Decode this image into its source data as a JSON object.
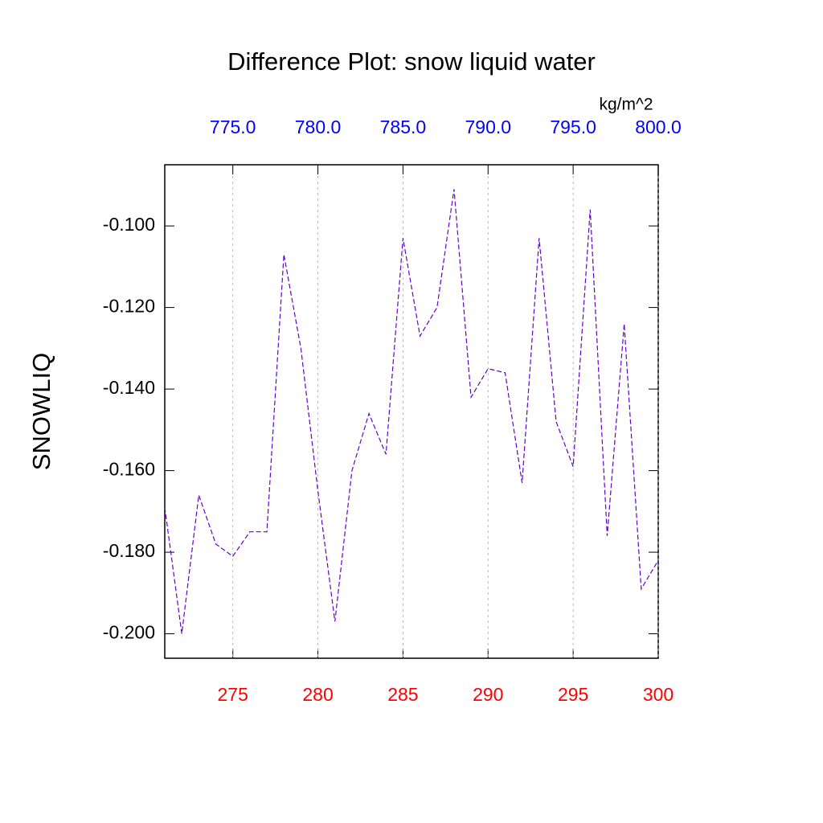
{
  "chart_data": {
    "type": "line",
    "title": "Difference Plot: snow liquid water",
    "y_label": "SNOWLIQ",
    "x2_label": "kg/m^2",
    "x": [
      271,
      272,
      273,
      274,
      275,
      276,
      277,
      278,
      279,
      280,
      281,
      282,
      283,
      284,
      285,
      286,
      287,
      288,
      289,
      290,
      291,
      292,
      293,
      294,
      295,
      296,
      297,
      298,
      299,
      300
    ],
    "series": [
      {
        "color": "#6600cc",
        "dash": true,
        "values": [
          -0.169,
          -0.2,
          -0.166,
          -0.178,
          -0.181,
          -0.175,
          -0.175,
          -0.107,
          -0.13,
          -0.165,
          -0.197,
          -0.16,
          -0.146,
          -0.156,
          -0.103,
          -0.127,
          -0.12,
          -0.091,
          -0.142,
          -0.135,
          -0.136,
          -0.163,
          -0.103,
          -0.148,
          -0.159,
          -0.096,
          -0.176,
          -0.124,
          -0.189,
          -0.182
        ]
      }
    ],
    "xlim": [
      271,
      300
    ],
    "xticks": [
      275,
      280,
      285,
      290,
      295,
      300
    ],
    "xtick_color": "#ff0000",
    "x2lim": [
      771,
      800
    ],
    "x2ticks": [
      {
        "value": 775,
        "label": "775.0"
      },
      {
        "value": 780,
        "label": "780.0"
      },
      {
        "value": 785,
        "label": "785.0"
      },
      {
        "value": 790,
        "label": "790.0"
      },
      {
        "value": 795,
        "label": "795.0"
      },
      {
        "value": 800,
        "label": "800.0"
      }
    ],
    "x2tick_color": "#0000ff",
    "ylim": [
      -0.206,
      -0.085
    ],
    "yticks": [
      {
        "value": -0.1,
        "label": "-0.100"
      },
      {
        "value": -0.12,
        "label": "-0.120"
      },
      {
        "value": -0.14,
        "label": "-0.140"
      },
      {
        "value": -0.16,
        "label": "-0.160"
      },
      {
        "value": -0.18,
        "label": "-0.180"
      },
      {
        "value": -0.2,
        "label": "-0.200"
      }
    ],
    "grid": "x"
  }
}
